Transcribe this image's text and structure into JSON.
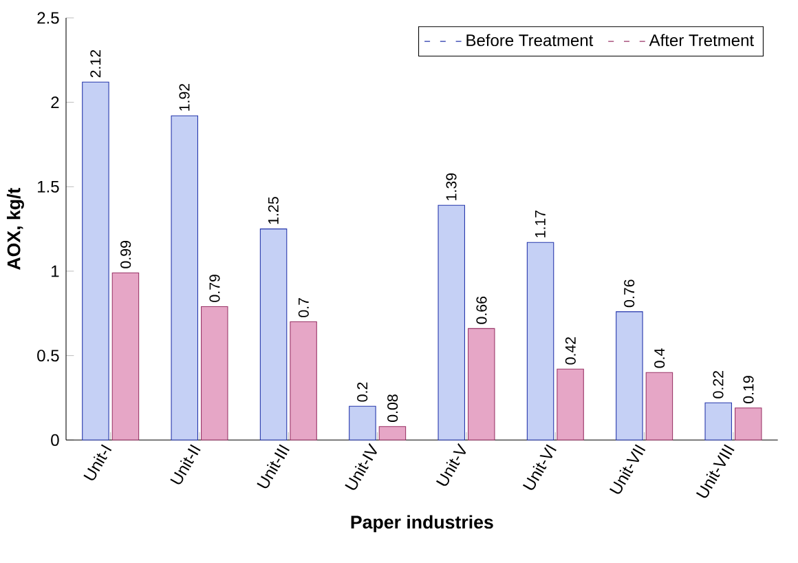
{
  "chart_data": {
    "type": "bar",
    "xlabel": "Paper industries",
    "ylabel": "AOX, kg/t",
    "categories": [
      "Unit-I",
      "Unit-II",
      "Unit-III",
      "Unit-IV",
      "Unit-V",
      "Unit-VI",
      "Unit-VII",
      "Unit-VIII"
    ],
    "series": [
      {
        "name": "Before Treatment",
        "color": "#c5d0f5",
        "values": [
          2.12,
          1.92,
          1.25,
          0.2,
          1.39,
          1.17,
          0.76,
          0.22
        ]
      },
      {
        "name": "After Tretment",
        "color": "#e6a6c6",
        "values": [
          0.99,
          0.79,
          0.7,
          0.08,
          0.66,
          0.42,
          0.4,
          0.19
        ]
      }
    ],
    "ylim": [
      0,
      2.5
    ],
    "yticks": [
      0,
      0.5,
      1,
      1.5,
      2,
      2.5
    ],
    "data_labels": true,
    "legend": "top right",
    "grid": false
  }
}
